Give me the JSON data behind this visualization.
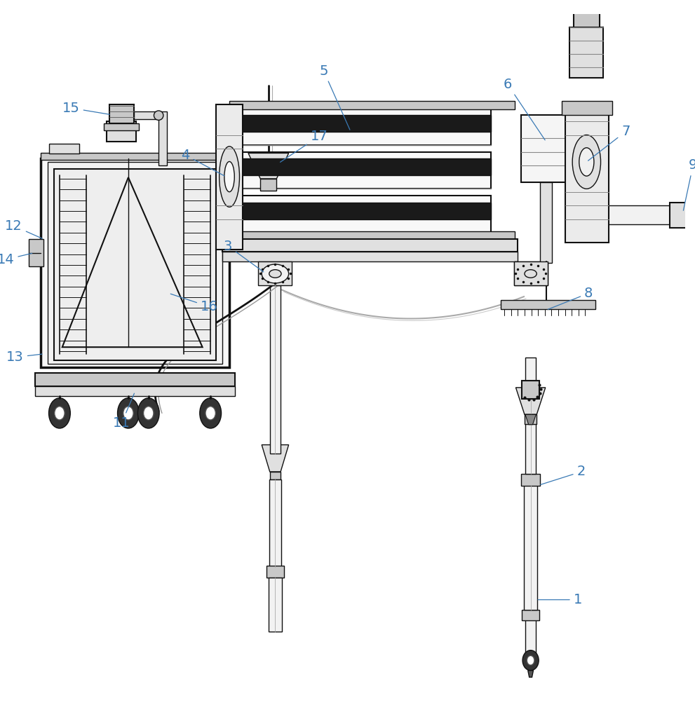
{
  "bg_color": "#ffffff",
  "lc": "#2a2a2a",
  "dc": "#111111",
  "gc": "#777777",
  "label_color": "#3a7ab5",
  "lfs": 14,
  "figsize": [
    9.91,
    10.0
  ],
  "dpi": 100,
  "fc_light": "#f2f2f2",
  "fc_mid": "#e0e0e0",
  "fc_dark": "#c8c8c8",
  "fc_black": "#1a1a1a"
}
